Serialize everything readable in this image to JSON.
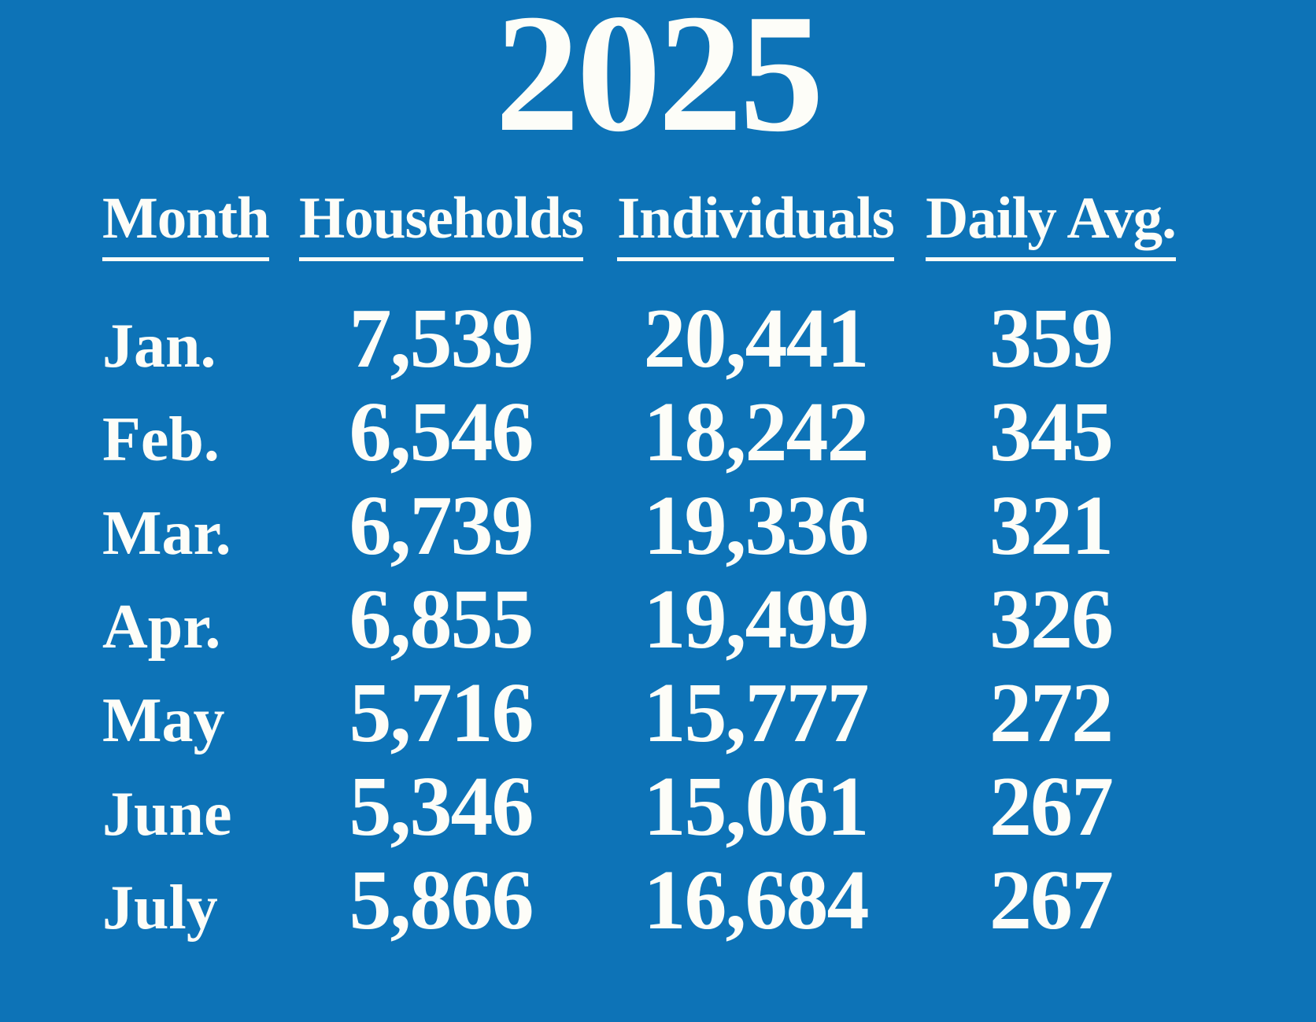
{
  "background_color": "#0d73b7",
  "text_color": "#fdfdf8",
  "title": "2025",
  "table": {
    "headers": [
      "Month",
      "Households",
      "Individuals",
      "Daily Avg."
    ],
    "rows": [
      {
        "month": "Jan.",
        "households": "7,539",
        "individuals": "20,441",
        "daily_avg": "359"
      },
      {
        "month": "Feb.",
        "households": "6,546",
        "individuals": "18,242",
        "daily_avg": "345"
      },
      {
        "month": "Mar.",
        "households": "6,739",
        "individuals": "19,336",
        "daily_avg": "321"
      },
      {
        "month": "Apr.",
        "households": "6,855",
        "individuals": "19,499",
        "daily_avg": "326"
      },
      {
        "month": "May",
        "households": "5,716",
        "individuals": "15,777",
        "daily_avg": "272"
      },
      {
        "month": "June",
        "households": "5,346",
        "individuals": "15,061",
        "daily_avg": "267"
      },
      {
        "month": "July",
        "households": "5,866",
        "individuals": "16,684",
        "daily_avg": "267"
      }
    ]
  },
  "chart_data": {
    "type": "table",
    "title": "2025",
    "columns": [
      "Month",
      "Households",
      "Individuals",
      "Daily Avg."
    ],
    "categories": [
      "Jan.",
      "Feb.",
      "Mar.",
      "Apr.",
      "May",
      "June",
      "July"
    ],
    "series": [
      {
        "name": "Households",
        "values": [
          7539,
          6546,
          6739,
          6855,
          5716,
          5346,
          5866
        ]
      },
      {
        "name": "Individuals",
        "values": [
          20441,
          18242,
          19336,
          19499,
          15777,
          15061,
          16684
        ]
      },
      {
        "name": "Daily Avg.",
        "values": [
          359,
          345,
          321,
          326,
          272,
          267,
          267
        ]
      }
    ]
  }
}
